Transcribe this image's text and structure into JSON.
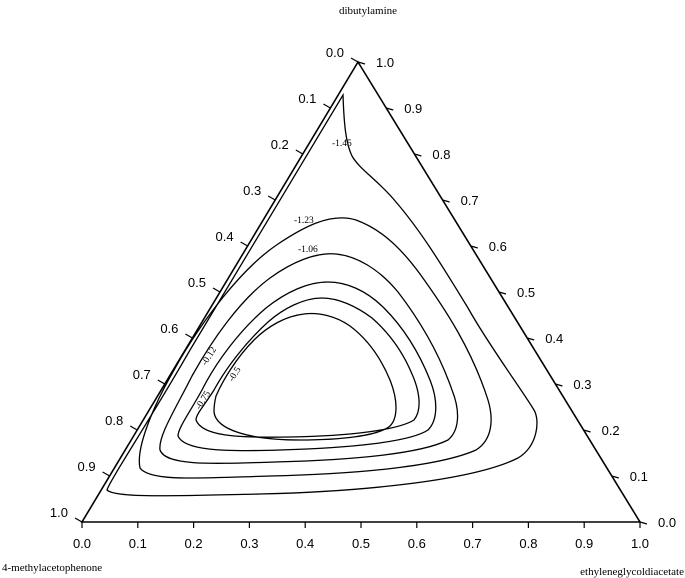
{
  "chart_data": {
    "type": "ternary-contour",
    "title": "",
    "vertices": {
      "top": "dibutylamine",
      "left": "4-methylacetophenone",
      "right": "ethyleneglycoldiacetate"
    },
    "axes": {
      "bottom_ticks": [
        "0.0",
        "0.1",
        "0.2",
        "0.3",
        "0.4",
        "0.5",
        "0.6",
        "0.7",
        "0.8",
        "0.9",
        "1.0"
      ],
      "left_ticks": [
        "0.0",
        "0.1",
        "0.2",
        "0.3",
        "0.4",
        "0.5",
        "0.6",
        "0.7",
        "0.8",
        "0.9",
        "1.0"
      ],
      "right_ticks": [
        "1.0",
        "0.9",
        "0.8",
        "0.7",
        "0.6",
        "0.5",
        "0.4",
        "0.3",
        "0.2",
        "0.1",
        "0.0"
      ]
    },
    "contour_labels": [
      "-1.45",
      "-1.23",
      "-1.06",
      "-0.12",
      "-0.75",
      "-0.5"
    ],
    "grid": false,
    "legend": "none"
  }
}
